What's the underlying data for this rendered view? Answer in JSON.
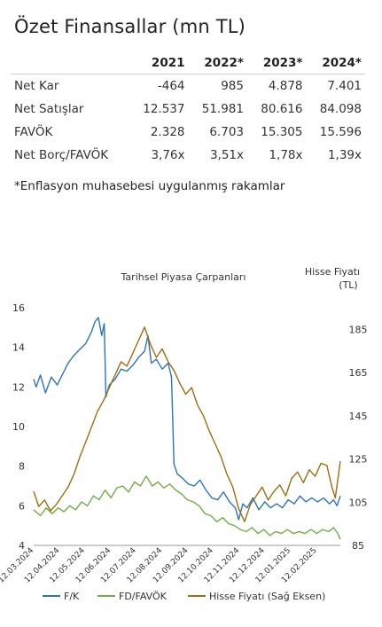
{
  "page": {
    "title": "Özet Finansallar (mn TL)",
    "note": "*Enflasyon muhasebesi uygulanmış rakamlar"
  },
  "table": {
    "columns": [
      "",
      "2021",
      "2022*",
      "2023*",
      "2024*"
    ],
    "rows": [
      {
        "label": "Net Kar",
        "values": [
          "-464",
          "985",
          "4.878",
          "7.401"
        ]
      },
      {
        "label": "Net Satışlar",
        "values": [
          "12.537",
          "51.981",
          "80.616",
          "84.098"
        ]
      },
      {
        "label": "FAVÖK",
        "values": [
          "2.328",
          "6.703",
          "15.305",
          "15.596"
        ]
      },
      {
        "label": "Net Borç/FAVÖK",
        "values": [
          "3,76x",
          "3,51x",
          "1,78x",
          "1,39x"
        ]
      }
    ]
  },
  "chart_data": {
    "type": "line",
    "title": "Tarihsel Piyasa Çarpanları",
    "y2label": "Hisse Fiyatı (TL)",
    "y2label_lines": [
      "Hisse Fiyatı",
      "(TL)"
    ],
    "ylim": [
      4,
      16
    ],
    "y2lim": [
      85,
      195
    ],
    "yticks": [
      "4",
      "6",
      "8",
      "10",
      "12",
      "14",
      "16"
    ],
    "y2ticks": [
      "85",
      "105",
      "125",
      "145",
      "165",
      "185"
    ],
    "xticks": [
      "12.03.2024",
      "12.04.2024",
      "12.05.2024",
      "12.06.2024",
      "12.07.2024",
      "12.08.2024",
      "12.09.2024",
      "12.10.2024",
      "12.11.2024",
      "12.12.2024",
      "12.01.2025",
      "12.02.2025"
    ],
    "x_start": "2024-03-12",
    "x_end": "2025-03-12",
    "grid": false,
    "legend_position": "bottom",
    "series": [
      {
        "name": "F/K",
        "axis": "left",
        "color": "#2e75b6",
        "points": [
          [
            "2024-03-12",
            12.4
          ],
          [
            "2024-03-15",
            12.0
          ],
          [
            "2024-03-20",
            12.6
          ],
          [
            "2024-03-26",
            11.7
          ],
          [
            "2024-04-02",
            12.5
          ],
          [
            "2024-04-09",
            12.1
          ],
          [
            "2024-04-16",
            12.7
          ],
          [
            "2024-04-22",
            13.2
          ],
          [
            "2024-04-29",
            13.6
          ],
          [
            "2024-05-06",
            13.9
          ],
          [
            "2024-05-13",
            14.2
          ],
          [
            "2024-05-20",
            14.8
          ],
          [
            "2024-05-24",
            15.3
          ],
          [
            "2024-05-28",
            15.5
          ],
          [
            "2024-06-01",
            14.6
          ],
          [
            "2024-06-04",
            15.2
          ],
          [
            "2024-06-06",
            11.5
          ],
          [
            "2024-06-10",
            12.1
          ],
          [
            "2024-06-17",
            12.4
          ],
          [
            "2024-06-24",
            12.9
          ],
          [
            "2024-07-01",
            12.8
          ],
          [
            "2024-07-08",
            13.1
          ],
          [
            "2024-07-15",
            13.5
          ],
          [
            "2024-07-22",
            13.8
          ],
          [
            "2024-07-26",
            14.6
          ],
          [
            "2024-07-30",
            13.2
          ],
          [
            "2024-08-05",
            13.4
          ],
          [
            "2024-08-12",
            12.9
          ],
          [
            "2024-08-19",
            13.2
          ],
          [
            "2024-08-23",
            12.5
          ],
          [
            "2024-08-26",
            8.1
          ],
          [
            "2024-08-30",
            7.6
          ],
          [
            "2024-09-05",
            7.4
          ],
          [
            "2024-09-12",
            7.1
          ],
          [
            "2024-09-19",
            7.0
          ],
          [
            "2024-09-26",
            7.3
          ],
          [
            "2024-10-03",
            6.8
          ],
          [
            "2024-10-10",
            6.4
          ],
          [
            "2024-10-17",
            6.3
          ],
          [
            "2024-10-24",
            6.7
          ],
          [
            "2024-10-31",
            6.2
          ],
          [
            "2024-11-07",
            5.9
          ],
          [
            "2024-11-11",
            5.3
          ],
          [
            "2024-11-16",
            6.1
          ],
          [
            "2024-11-21",
            5.9
          ],
          [
            "2024-11-28",
            6.4
          ],
          [
            "2024-12-05",
            5.8
          ],
          [
            "2024-12-12",
            6.2
          ],
          [
            "2024-12-19",
            5.9
          ],
          [
            "2024-12-26",
            6.1
          ],
          [
            "2025-01-02",
            5.9
          ],
          [
            "2025-01-09",
            6.3
          ],
          [
            "2025-01-16",
            6.1
          ],
          [
            "2025-01-23",
            6.5
          ],
          [
            "2025-01-30",
            6.2
          ],
          [
            "2025-02-06",
            6.4
          ],
          [
            "2025-02-13",
            6.2
          ],
          [
            "2025-02-20",
            6.4
          ],
          [
            "2025-02-27",
            6.1
          ],
          [
            "2025-03-04",
            6.3
          ],
          [
            "2025-03-08",
            6.0
          ],
          [
            "2025-03-12",
            6.5
          ]
        ]
      },
      {
        "name": "FD/FAVÖK",
        "axis": "left",
        "color": "#70ad47",
        "points": [
          [
            "2024-03-12",
            5.8
          ],
          [
            "2024-03-20",
            5.5
          ],
          [
            "2024-03-27",
            5.9
          ],
          [
            "2024-04-03",
            5.6
          ],
          [
            "2024-04-10",
            5.9
          ],
          [
            "2024-04-17",
            5.7
          ],
          [
            "2024-04-24",
            6.0
          ],
          [
            "2024-05-01",
            5.8
          ],
          [
            "2024-05-08",
            6.2
          ],
          [
            "2024-05-15",
            6.0
          ],
          [
            "2024-05-22",
            6.5
          ],
          [
            "2024-05-29",
            6.3
          ],
          [
            "2024-06-05",
            6.8
          ],
          [
            "2024-06-12",
            6.4
          ],
          [
            "2024-06-19",
            6.9
          ],
          [
            "2024-06-26",
            7.0
          ],
          [
            "2024-07-03",
            6.7
          ],
          [
            "2024-07-10",
            7.2
          ],
          [
            "2024-07-17",
            7.0
          ],
          [
            "2024-07-24",
            7.5
          ],
          [
            "2024-07-31",
            7.0
          ],
          [
            "2024-08-07",
            7.2
          ],
          [
            "2024-08-14",
            6.9
          ],
          [
            "2024-08-21",
            7.1
          ],
          [
            "2024-08-28",
            6.8
          ],
          [
            "2024-09-04",
            6.6
          ],
          [
            "2024-09-11",
            6.3
          ],
          [
            "2024-09-18",
            6.2
          ],
          [
            "2024-09-25",
            6.0
          ],
          [
            "2024-10-02",
            5.6
          ],
          [
            "2024-10-09",
            5.5
          ],
          [
            "2024-10-16",
            5.2
          ],
          [
            "2024-10-23",
            5.4
          ],
          [
            "2024-10-30",
            5.1
          ],
          [
            "2024-11-06",
            5.0
          ],
          [
            "2024-11-13",
            4.8
          ],
          [
            "2024-11-20",
            4.7
          ],
          [
            "2024-11-27",
            4.9
          ],
          [
            "2024-12-04",
            4.6
          ],
          [
            "2024-12-11",
            4.8
          ],
          [
            "2024-12-18",
            4.5
          ],
          [
            "2024-12-25",
            4.7
          ],
          [
            "2025-01-01",
            4.6
          ],
          [
            "2025-01-08",
            4.8
          ],
          [
            "2025-01-15",
            4.6
          ],
          [
            "2025-01-22",
            4.7
          ],
          [
            "2025-01-29",
            4.6
          ],
          [
            "2025-02-05",
            4.8
          ],
          [
            "2025-02-12",
            4.6
          ],
          [
            "2025-02-19",
            4.8
          ],
          [
            "2025-02-26",
            4.7
          ],
          [
            "2025-03-04",
            4.9
          ],
          [
            "2025-03-09",
            4.6
          ],
          [
            "2025-03-12",
            4.3
          ]
        ]
      },
      {
        "name": "Hisse Fiyatı (Sağ Eksen)",
        "axis": "right",
        "color": "#9c6f12",
        "points": [
          [
            "2024-03-12",
            110
          ],
          [
            "2024-03-18",
            103
          ],
          [
            "2024-03-25",
            106
          ],
          [
            "2024-04-01",
            101
          ],
          [
            "2024-04-08",
            104
          ],
          [
            "2024-04-15",
            108
          ],
          [
            "2024-04-22",
            112
          ],
          [
            "2024-04-29",
            118
          ],
          [
            "2024-05-06",
            126
          ],
          [
            "2024-05-13",
            133
          ],
          [
            "2024-05-20",
            140
          ],
          [
            "2024-05-27",
            147
          ],
          [
            "2024-06-03",
            152
          ],
          [
            "2024-06-10",
            158
          ],
          [
            "2024-06-17",
            164
          ],
          [
            "2024-06-24",
            170
          ],
          [
            "2024-07-01",
            168
          ],
          [
            "2024-07-08",
            174
          ],
          [
            "2024-07-15",
            180
          ],
          [
            "2024-07-22",
            186
          ],
          [
            "2024-07-29",
            178
          ],
          [
            "2024-08-05",
            172
          ],
          [
            "2024-08-12",
            176
          ],
          [
            "2024-08-19",
            170
          ],
          [
            "2024-08-26",
            166
          ],
          [
            "2024-09-02",
            160
          ],
          [
            "2024-09-09",
            155
          ],
          [
            "2024-09-16",
            158
          ],
          [
            "2024-09-23",
            150
          ],
          [
            "2024-09-30",
            145
          ],
          [
            "2024-10-07",
            138
          ],
          [
            "2024-10-14",
            132
          ],
          [
            "2024-10-21",
            126
          ],
          [
            "2024-10-28",
            118
          ],
          [
            "2024-11-04",
            112
          ],
          [
            "2024-11-11",
            102
          ],
          [
            "2024-11-18",
            96
          ],
          [
            "2024-11-25",
            104
          ],
          [
            "2024-12-02",
            108
          ],
          [
            "2024-12-09",
            112
          ],
          [
            "2024-12-16",
            106
          ],
          [
            "2024-12-23",
            110
          ],
          [
            "2024-12-30",
            113
          ],
          [
            "2025-01-06",
            108
          ],
          [
            "2025-01-13",
            116
          ],
          [
            "2025-01-20",
            119
          ],
          [
            "2025-01-27",
            114
          ],
          [
            "2025-02-03",
            120
          ],
          [
            "2025-02-10",
            117
          ],
          [
            "2025-02-17",
            123
          ],
          [
            "2025-02-24",
            122
          ],
          [
            "2025-03-02",
            112
          ],
          [
            "2025-03-06",
            107
          ],
          [
            "2025-03-12",
            124
          ]
        ]
      }
    ]
  }
}
